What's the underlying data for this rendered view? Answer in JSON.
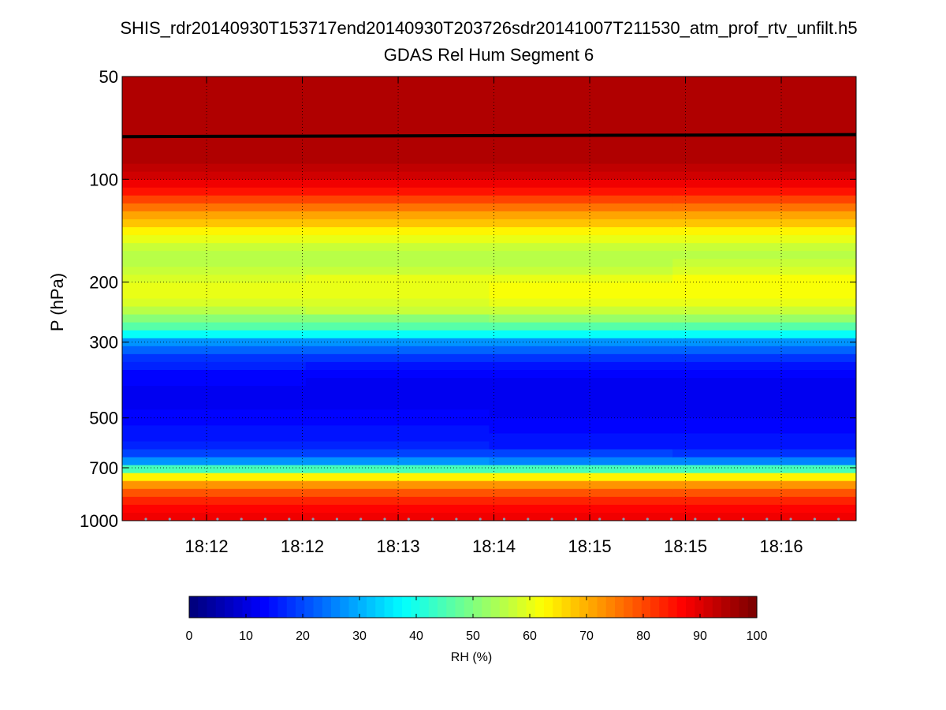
{
  "chart_data": {
    "type": "heatmap",
    "title": "SHIS_rdr20140930T153717end20140930T203726sdr20141007T211530_atm_prof_rtv_unfilt.h5",
    "subtitle": "GDAS Rel Hum Segment 6",
    "ylabel": "P (hPa)",
    "xlabel": "",
    "y_scale": "log",
    "y_direction": "reversed",
    "ylim": [
      50,
      1000
    ],
    "y_ticks": [
      50,
      100,
      200,
      300,
      500,
      700,
      1000
    ],
    "x_tick_labels": [
      "18:12",
      "18:12",
      "18:13",
      "18:14",
      "18:15",
      "18:15",
      "18:16"
    ],
    "grid": true,
    "colormap": "jet",
    "colorbar": {
      "label": "RH (%)",
      "range": [
        0,
        100
      ],
      "ticks": [
        0,
        10,
        20,
        30,
        40,
        50,
        60,
        70,
        80,
        90,
        100
      ],
      "orientation": "horizontal"
    },
    "profile": {
      "pressure_hPa": [
        50,
        90,
        100,
        108,
        115,
        122,
        130,
        140,
        150,
        165,
        180,
        200,
        220,
        240,
        260,
        280,
        300,
        330,
        380,
        450,
        520,
        600,
        650,
        680,
        700,
        720,
        760,
        800,
        850,
        900,
        950,
        1000
      ],
      "rh_percent_left": [
        95,
        94,
        90,
        86,
        80,
        75,
        70,
        65,
        60,
        55,
        55,
        60,
        60,
        57,
        50,
        42,
        28,
        18,
        13,
        12,
        14,
        16,
        22,
        30,
        40,
        55,
        68,
        75,
        82,
        86,
        88,
        90
      ],
      "rh_percent_right": [
        95,
        94,
        90,
        86,
        80,
        75,
        70,
        65,
        60,
        55,
        57,
        62,
        62,
        58,
        50,
        42,
        28,
        18,
        12,
        11,
        13,
        15,
        20,
        28,
        40,
        55,
        68,
        76,
        82,
        86,
        88,
        90
      ]
    },
    "tropopause_line_hPa": [
      75,
      74
    ]
  }
}
